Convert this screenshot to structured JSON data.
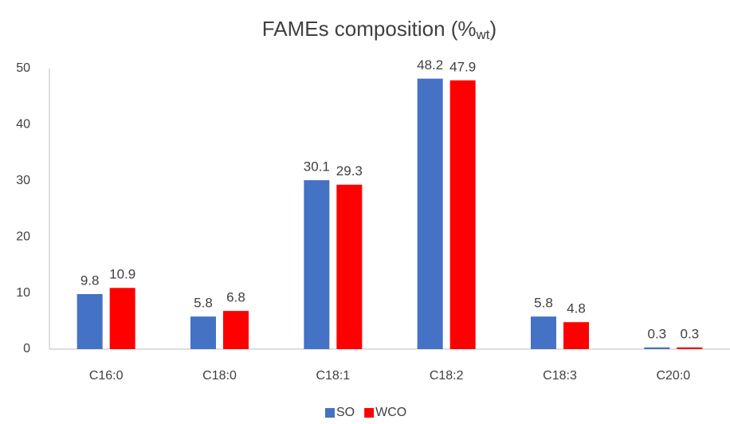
{
  "chart_data": {
    "type": "bar",
    "title": "FAMEs composition (%",
    "title_subscript": "wt",
    "title_end": ")",
    "categories": [
      "C16:0",
      "C18:0",
      "C18:1",
      "C18:2",
      "C18:3",
      "C20:0"
    ],
    "series": [
      {
        "name": "SO",
        "color": "#4472c4",
        "values": [
          9.8,
          5.8,
          30.1,
          48.2,
          5.8,
          0.3
        ]
      },
      {
        "name": "WCO",
        "color": "#ff0000",
        "values": [
          10.9,
          6.8,
          29.3,
          47.9,
          4.8,
          0.3
        ]
      }
    ],
    "ylim": [
      0,
      50
    ],
    "yticks": [
      0,
      10,
      20,
      30,
      40,
      50
    ],
    "grid": false,
    "legend": "bottom"
  }
}
